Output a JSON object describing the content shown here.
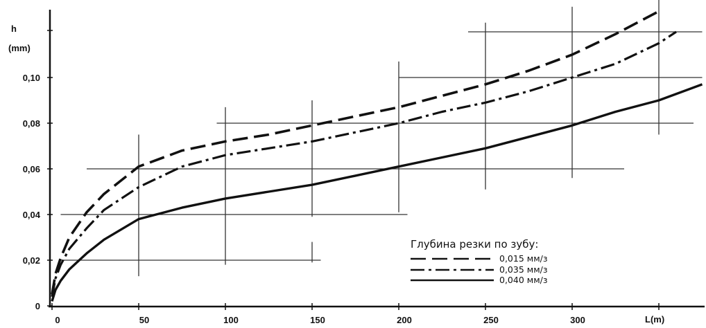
{
  "chart_data": {
    "type": "line",
    "ylabel": "h",
    "yunit": "(mm)",
    "xlabel": "L(m)",
    "xlim": [
      -5,
      375
    ],
    "ylim": [
      0,
      0.13
    ],
    "x_ticks": [
      "0",
      "50",
      "100",
      "150",
      "200",
      "250",
      "300"
    ],
    "x_tick_values": [
      0,
      50,
      100,
      150,
      200,
      250,
      300
    ],
    "y_ticks": [
      "0",
      "0,02",
      "0,04",
      "0,06",
      "0,08",
      "0,10"
    ],
    "y_tick_values": [
      0,
      0.02,
      0.04,
      0.06,
      0.08,
      0.1
    ],
    "legend": {
      "title": "Глубина резки по зубу:",
      "placement": "bottom-right"
    },
    "grid": "staggered",
    "series": [
      {
        "name": "0,015 мм/з",
        "style": "dashed",
        "x": [
          0,
          2,
          5,
          10,
          20,
          30,
          50,
          75,
          100,
          125,
          150,
          175,
          200,
          225,
          250,
          275,
          300,
          325,
          350
        ],
        "y": [
          0.005,
          0.014,
          0.021,
          0.03,
          0.041,
          0.049,
          0.061,
          0.068,
          0.072,
          0.075,
          0.079,
          0.083,
          0.087,
          0.092,
          0.097,
          0.103,
          0.11,
          0.119,
          0.129
        ]
      },
      {
        "name": "0,035 мм/з",
        "style": "dashdot",
        "x": [
          0,
          2,
          5,
          10,
          20,
          30,
          50,
          75,
          100,
          125,
          150,
          175,
          200,
          225,
          250,
          275,
          300,
          325,
          350,
          360
        ],
        "y": [
          0.004,
          0.012,
          0.018,
          0.025,
          0.034,
          0.042,
          0.052,
          0.061,
          0.066,
          0.069,
          0.072,
          0.076,
          0.08,
          0.085,
          0.089,
          0.094,
          0.1,
          0.106,
          0.115,
          0.12
        ]
      },
      {
        "name": "0,040 мм/з",
        "style": "solid",
        "x": [
          0,
          2,
          5,
          10,
          20,
          30,
          50,
          75,
          100,
          125,
          150,
          175,
          200,
          225,
          250,
          275,
          300,
          325,
          350,
          375
        ],
        "y": [
          0.002,
          0.007,
          0.011,
          0.016,
          0.023,
          0.029,
          0.038,
          0.043,
          0.047,
          0.05,
          0.053,
          0.057,
          0.061,
          0.065,
          0.069,
          0.074,
          0.079,
          0.085,
          0.09,
          0.097
        ]
      }
    ]
  }
}
